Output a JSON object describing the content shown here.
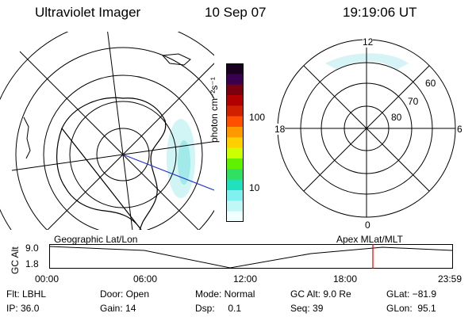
{
  "header": {
    "instrument": "Ultraviolet Imager",
    "date": "10 Sep 07",
    "time": "19:19:06 UT"
  },
  "left_map": {
    "label": "Geographic Lat/Lon"
  },
  "right_map": {
    "label": "Apex MLat/MLT",
    "mlt_labels": [
      "12",
      "18",
      "6",
      "0"
    ],
    "mlat_labels": [
      "60",
      "70",
      "80"
    ]
  },
  "colorbar": {
    "unit_label": "photon cm⁻²s⁻¹",
    "ticks": [
      "100",
      "10"
    ],
    "colors": [
      "#1a0020",
      "#3a0050",
      "#7a0010",
      "#b00000",
      "#d02000",
      "#ff5000",
      "#ff9900",
      "#ffd000",
      "#ccff00",
      "#60f000",
      "#30e060",
      "#20e0c0",
      "#80f0f0",
      "#c0f8f8",
      "#f0ffff"
    ]
  },
  "altitude_strip": {
    "axis_label": "GC Alt",
    "y_ticks": [
      "9.0",
      "1.8"
    ],
    "x_ticks": [
      "00:00",
      "06:00",
      "12:00",
      "18:00",
      "23:59"
    ],
    "marker_color": "#e00000"
  },
  "info": {
    "filter": "Flt: LBHL",
    "door": "Door: Open",
    "mode": "Mode: Normal",
    "gc_alt": "GC Alt: 9.0 Re",
    "glat": "GLat: −81.9",
    "ip": "IP: 36.0",
    "gain": "Gain: 14",
    "dsp": "Dsp:     0.1",
    "seq": "Seq: 39",
    "glon": "GLon:  95.1"
  }
}
